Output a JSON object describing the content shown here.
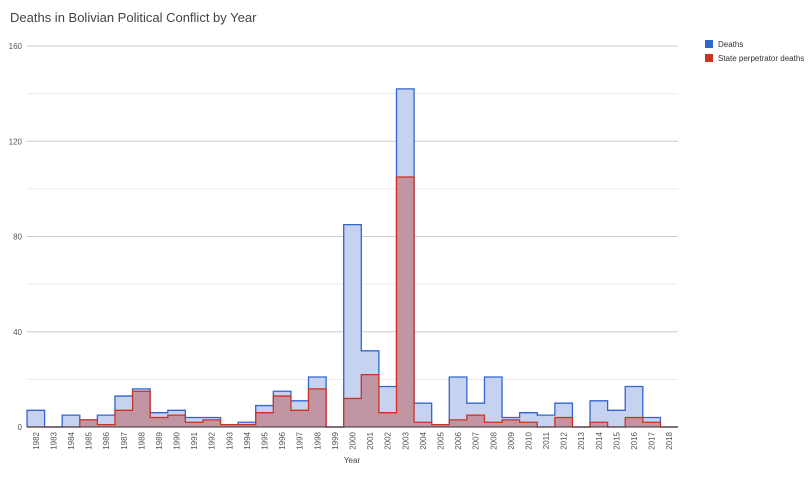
{
  "chart_data": {
    "type": "area",
    "subtype": "stepped-area-overlapping",
    "title": "Deaths in Bolivian Political Conflict by Year",
    "xlabel": "Year",
    "ylabel": "",
    "ylim": [
      0,
      160
    ],
    "yticks": [
      0,
      40,
      80,
      120,
      160
    ],
    "grid": true,
    "legend": "top-right",
    "categories": [
      "1982",
      "1983",
      "1984",
      "1985",
      "1986",
      "1987",
      "1988",
      "1989",
      "1990",
      "1991",
      "1992",
      "1993",
      "1994",
      "1995",
      "1996",
      "1997",
      "1998",
      "1999",
      "2000",
      "2001",
      "2002",
      "2003",
      "2004",
      "2005",
      "2006",
      "2007",
      "2008",
      "2009",
      "2010",
      "2011",
      "2012",
      "2013",
      "2014",
      "2015",
      "2016",
      "2017",
      "2018"
    ],
    "series": [
      {
        "name": "Deaths",
        "color": "#3366cc",
        "fill": "#c5d3f1",
        "values": [
          7,
          0,
          5,
          3,
          5,
          13,
          16,
          6,
          7,
          4,
          4,
          1,
          2,
          9,
          15,
          11,
          21,
          0,
          85,
          32,
          17,
          142,
          10,
          1,
          21,
          10,
          21,
          4,
          6,
          5,
          10,
          0,
          11,
          7,
          17,
          4,
          0
        ]
      },
      {
        "name": "State perpetrator deaths",
        "color": "#cc3322",
        "fill": "#c08e98",
        "values": [
          0,
          0,
          0,
          3,
          1,
          7,
          15,
          4,
          5,
          2,
          3,
          1,
          1,
          6,
          13,
          7,
          16,
          0,
          12,
          22,
          6,
          105,
          2,
          1,
          3,
          5,
          2,
          3,
          2,
          0,
          4,
          0,
          2,
          0,
          4,
          2,
          0
        ]
      }
    ]
  }
}
